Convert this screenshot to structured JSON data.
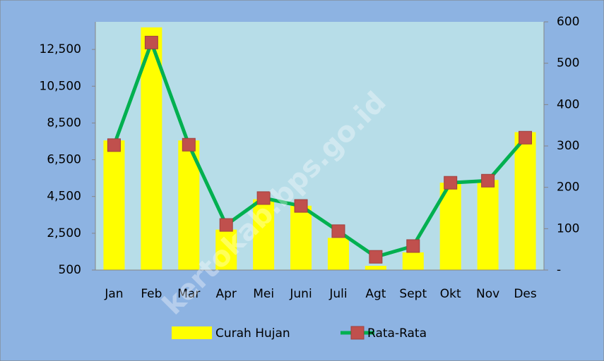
{
  "chart_data": {
    "type": "bar-line",
    "categories": [
      "Jan",
      "Feb",
      "Mar",
      "Apr",
      "Mei",
      "Juni",
      "Juli",
      "Agt",
      "Sept",
      "Okt",
      "Nov",
      "Des"
    ],
    "series": [
      {
        "name": "Curah Hujan",
        "color": "#ffff00",
        "type": "bar",
        "axis": "y",
        "values": [
          7550,
          13700,
          7550,
          2700,
          4350,
          4000,
          2250,
          730,
          1460,
          5250,
          5400,
          8000
        ]
      },
      {
        "name": "Rata-Rata",
        "color": "#00b050",
        "marker_color": "#c0504d",
        "type": "line",
        "axis": "y2",
        "values": [
          302,
          550,
          303,
          109,
          174,
          155,
          94,
          32,
          58,
          211,
          216,
          320
        ]
      }
    ],
    "ylim": [
      500,
      14000
    ],
    "yticks": [
      500,
      {
        "value": 2500,
        "label": "2,500"
      },
      {
        "value": 4500,
        "label": "4,500"
      },
      {
        "value": 6500,
        "label": "6,500"
      },
      {
        "value": 8500,
        "label": "8,500"
      },
      {
        "value": 10500,
        "label": "10,500"
      },
      {
        "value": 12500,
        "label": "12,500"
      }
    ],
    "y2lim": [
      0,
      600
    ],
    "y2ticks": [
      {
        "value": 0,
        "label": "-"
      },
      100,
      200,
      300,
      400,
      500,
      600
    ],
    "watermark": "kertokab.bps.go.id",
    "legend": "bottom"
  }
}
